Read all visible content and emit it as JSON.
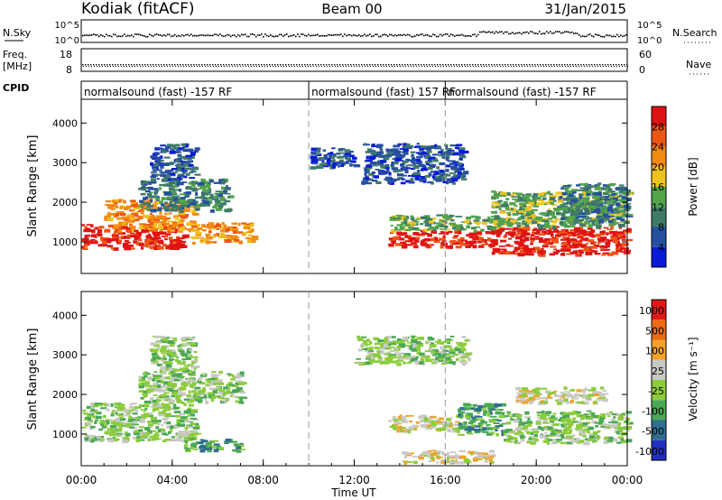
{
  "header": {
    "station": "Kodiak (fitACF)",
    "beam": "Beam 00",
    "date": "31/Jan/2015"
  },
  "strips": {
    "nsky_label": "N.Sky",
    "nsky_ticks": [
      "10^5",
      "10^0"
    ],
    "nsearch_label": "N.Search",
    "nsearch_ticks": [
      "10^5",
      "10^0"
    ],
    "freq_label": "Freq.",
    "freq_unit": "[MHz]",
    "freq_ticks": [
      "18",
      "8"
    ],
    "nave_label": "Nave",
    "nave_ticks": [
      "60",
      "0"
    ],
    "cpid_label": "CPID",
    "cpid_segments": [
      {
        "label": "normalsound (fast) -157 RF",
        "start": 0,
        "end": 10
      },
      {
        "label": "normalsound (fast) 157 RF",
        "start": 10,
        "end": 16
      },
      {
        "label": "normalsound (fast) -157 RF",
        "start": 16,
        "end": 24
      }
    ]
  },
  "colors": {
    "power_scale": [
      "#0a1ad8",
      "#264fa0",
      "#3f7a68",
      "#52a34a",
      "#f0c21e",
      "#f28a12",
      "#ec5514",
      "#e01313"
    ],
    "velocity_scale": [
      "#2030c0",
      "#2f6e8e",
      "#4aa855",
      "#8ccc3c",
      "#c8c8c4",
      "#f2a22a",
      "#ec6a12",
      "#e21818"
    ]
  },
  "chart_data": [
    {
      "type": "heatmap",
      "name": "power",
      "ylabel": "Slant Range [km]",
      "yticks": [
        "1000",
        "2000",
        "3000",
        "4000"
      ],
      "ylim": [
        200,
        4600
      ],
      "colorbar_label": "Power [dB]",
      "colorbar_ticks": [
        "4",
        "8",
        "12",
        "16",
        "20",
        "24",
        "28"
      ],
      "bands": [
        {
          "x0": 0.0,
          "x1": 4.5,
          "r0": 850,
          "r1": 1450,
          "level": 8
        },
        {
          "x0": 1.0,
          "x1": 5.0,
          "r0": 1300,
          "r1": 2100,
          "level": 6
        },
        {
          "x0": 2.5,
          "x1": 6.5,
          "r0": 1800,
          "r1": 2600,
          "level": 3
        },
        {
          "x0": 4.8,
          "x1": 7.5,
          "r0": 1000,
          "r1": 1500,
          "level": 6
        },
        {
          "x0": 3.0,
          "x1": 5.0,
          "r0": 2600,
          "r1": 3500,
          "level": 2
        },
        {
          "x0": 10.0,
          "x1": 12.0,
          "r0": 2900,
          "r1": 3400,
          "level": 2
        },
        {
          "x0": 12.3,
          "x1": 16.8,
          "r0": 2500,
          "r1": 3500,
          "level": 2
        },
        {
          "x0": 13.5,
          "x1": 18.0,
          "r0": 900,
          "r1": 1300,
          "level": 8
        },
        {
          "x0": 13.5,
          "x1": 18.5,
          "r0": 1300,
          "r1": 1700,
          "level": 4
        },
        {
          "x0": 18.0,
          "x1": 24.0,
          "r0": 700,
          "r1": 1400,
          "level": 8
        },
        {
          "x0": 18.0,
          "x1": 24.0,
          "r0": 1400,
          "r1": 2300,
          "level": 4
        },
        {
          "x0": 21.0,
          "x1": 24.0,
          "r0": 1500,
          "r1": 2500,
          "level": 3
        }
      ]
    },
    {
      "type": "heatmap",
      "name": "velocity",
      "ylabel": "Slant Range [km]",
      "yticks": [
        "1000",
        "2000",
        "3000",
        "4000"
      ],
      "ylim": [
        200,
        4600
      ],
      "colorbar_label": "Velocity [m s⁻¹]",
      "colorbar_ticks": [
        "1000",
        "500",
        "100",
        "25",
        "-25",
        "-100",
        "-500",
        "-1000"
      ],
      "xlabel": "Time UT",
      "xticks": [
        "00:00",
        "04:00",
        "08:00",
        "12:00",
        "16:00",
        "20:00",
        "00:00"
      ],
      "xlim": [
        0,
        24
      ],
      "bands": [
        {
          "x0": 0.0,
          "x1": 5.0,
          "r0": 850,
          "r1": 1800,
          "level": 4
        },
        {
          "x0": 2.5,
          "x1": 7.0,
          "r0": 1800,
          "r1": 2600,
          "level": 4
        },
        {
          "x0": 4.5,
          "x1": 7.0,
          "r0": 600,
          "r1": 900,
          "level": 3
        },
        {
          "x0": 3.0,
          "x1": 5.0,
          "r0": 2600,
          "r1": 3500,
          "level": 4
        },
        {
          "x0": 12.0,
          "x1": 17.0,
          "r0": 2800,
          "r1": 3500,
          "level": 4
        },
        {
          "x0": 13.5,
          "x1": 16.5,
          "r0": 1100,
          "r1": 1500,
          "level": 5
        },
        {
          "x0": 16.5,
          "x1": 18.5,
          "r0": 1000,
          "r1": 1800,
          "level": 3
        },
        {
          "x0": 18.5,
          "x1": 24.0,
          "r0": 800,
          "r1": 1600,
          "level": 4
        },
        {
          "x0": 19.0,
          "x1": 23.0,
          "r0": 1800,
          "r1": 2200,
          "level": 5
        },
        {
          "x0": 14.0,
          "x1": 18.0,
          "r0": 300,
          "r1": 600,
          "level": 5
        }
      ]
    }
  ]
}
